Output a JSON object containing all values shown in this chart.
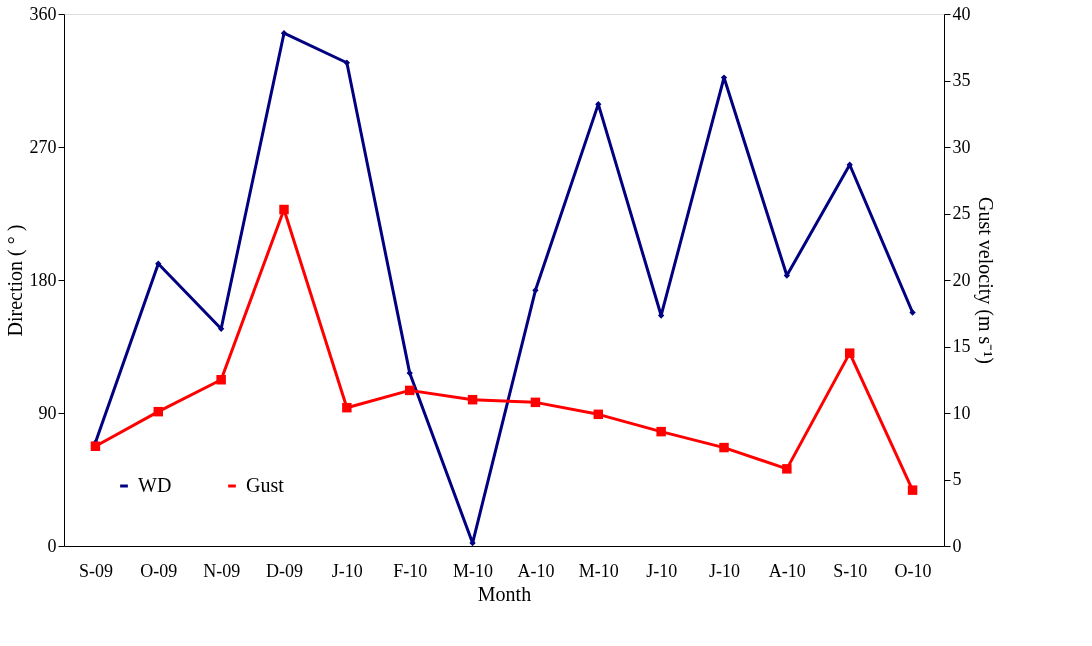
{
  "chart_data": {
    "type": "line",
    "xlabel": "Month",
    "ylabel": "Direction ( ° )",
    "y2label": "Gust velocity (m s⁻¹)",
    "categories": [
      "S-09",
      "O-09",
      "N-09",
      "D-09",
      "J-10",
      "F-10",
      "M-10",
      "A-10",
      "M-10",
      "J-10",
      "J-10",
      "A-10",
      "S-10",
      "O-10"
    ],
    "series": [
      {
        "name": "WD",
        "color": "#000080",
        "marker": "diamond",
        "values": [
          70,
          191,
          147,
          347,
          327,
          117,
          2,
          173,
          299,
          156,
          317,
          183,
          258,
          158
        ]
      },
      {
        "name": "Gust",
        "color": "#ff0000",
        "marker": "square",
        "axis": "y2",
        "values": [
          7.5,
          10.1,
          12.5,
          25.3,
          10.4,
          11.7,
          11.0,
          10.8,
          9.9,
          8.6,
          7.4,
          5.8,
          14.5,
          4.2
        ]
      }
    ],
    "ylim": [
      0,
      360
    ],
    "yticks": [
      0,
      90,
      180,
      270,
      360
    ],
    "y2lim": [
      0,
      40
    ],
    "y2ticks": [
      0,
      5,
      10,
      15,
      20,
      25,
      30,
      35,
      40
    ],
    "legend": "bottom left",
    "grid": false
  }
}
